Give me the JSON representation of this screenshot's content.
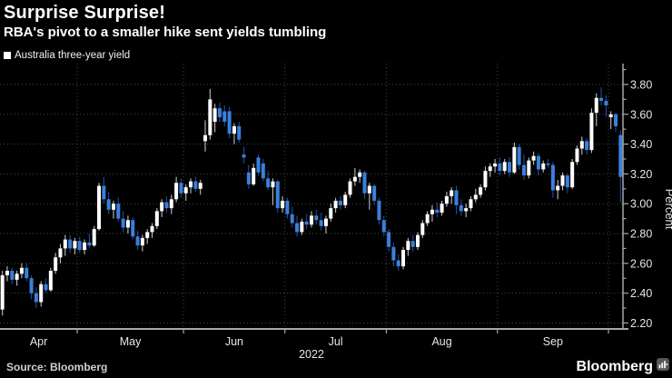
{
  "header": {
    "title": "Surprise Surprise!",
    "subtitle": "RBA's pivot to a smaller hike sent yields tumbling"
  },
  "legend": {
    "label": "Australia three-year yield",
    "swatch_color": "#ffffff"
  },
  "footer": {
    "source": "Source: Bloomberg",
    "brand": "Bloomberg"
  },
  "colors": {
    "background": "#000000",
    "up_body": "#ffffff",
    "up_wick": "#bdbdbd",
    "down_body": "#3a80dc",
    "down_wick": "#1d4f9c",
    "grid": "#474747",
    "axis": "#a8a8a8",
    "label": "#e6e6e6"
  },
  "chart_data": {
    "type": "candlestick",
    "title": "Surprise Surprise!",
    "subtitle": "RBA's pivot to a smaller hike sent yields tumbling",
    "series_name": "Australia three-year yield",
    "ylabel": "Percent",
    "year_label": "2022",
    "ymin": 2.16,
    "ymax": 3.94,
    "ytick_label_min": 2.2,
    "ytick_label_max": 3.8,
    "ytick_label_step": 0.2,
    "ytick_minor_step": 0.1,
    "grid": "dotted",
    "legend_position": "top-left",
    "months": [
      {
        "label": "Apr",
        "candles": [
          [
            2.29,
            2.55,
            2.25,
            2.52
          ],
          [
            2.52,
            2.58,
            2.48,
            2.55
          ],
          [
            2.55,
            2.57,
            2.46,
            2.49
          ],
          [
            2.49,
            2.55,
            2.45,
            2.53
          ],
          [
            2.53,
            2.6,
            2.5,
            2.57
          ],
          [
            2.57,
            2.6,
            2.48,
            2.5
          ],
          [
            2.5,
            2.52,
            2.36,
            2.4
          ],
          [
            2.4,
            2.44,
            2.3,
            2.34
          ],
          [
            2.34,
            2.48,
            2.31,
            2.46
          ],
          [
            2.46,
            2.5,
            2.4,
            2.42
          ],
          [
            2.42,
            2.57,
            2.41,
            2.55
          ],
          [
            2.55,
            2.67,
            2.53,
            2.64
          ],
          [
            2.64,
            2.73,
            2.6,
            2.7
          ],
          [
            2.7,
            2.79,
            2.65,
            2.76
          ],
          [
            2.76,
            2.79,
            2.67,
            2.7
          ],
          [
            2.7,
            2.77,
            2.66,
            2.75
          ]
        ]
      },
      {
        "label": "May",
        "candles": [
          [
            2.75,
            2.78,
            2.67,
            2.69
          ],
          [
            2.69,
            2.76,
            2.66,
            2.74
          ],
          [
            2.74,
            2.8,
            2.7,
            2.72
          ],
          [
            2.72,
            2.85,
            2.71,
            2.83
          ],
          [
            2.83,
            3.14,
            2.82,
            3.12
          ],
          [
            3.12,
            3.18,
            3.0,
            3.03
          ],
          [
            3.03,
            3.08,
            2.93,
            2.96
          ],
          [
            2.96,
            3.02,
            2.9,
            3.0
          ],
          [
            3.0,
            3.04,
            2.88,
            2.9
          ],
          [
            2.9,
            2.95,
            2.81,
            2.84
          ],
          [
            2.84,
            2.92,
            2.8,
            2.89
          ],
          [
            2.89,
            2.91,
            2.76,
            2.78
          ],
          [
            2.78,
            2.82,
            2.69,
            2.72
          ],
          [
            2.72,
            2.79,
            2.68,
            2.77
          ],
          [
            2.77,
            2.83,
            2.73,
            2.81
          ],
          [
            2.81,
            2.87,
            2.77,
            2.85
          ],
          [
            2.85,
            2.97,
            2.83,
            2.95
          ],
          [
            2.95,
            3.03,
            2.91,
            3.01
          ],
          [
            3.01,
            3.05,
            2.94,
            2.97
          ],
          [
            2.97,
            3.06,
            2.93,
            3.03
          ],
          [
            3.03,
            3.18,
            3.01,
            3.14
          ],
          [
            3.14,
            3.17,
            3.04,
            3.07
          ]
        ]
      },
      {
        "label": "Jun",
        "candles": [
          [
            3.07,
            3.13,
            3.02,
            3.11
          ],
          [
            3.11,
            3.17,
            3.07,
            3.15
          ],
          [
            3.15,
            3.18,
            3.08,
            3.1
          ],
          [
            3.1,
            3.16,
            3.06,
            3.14
          ],
          [
            3.42,
            3.56,
            3.35,
            3.46
          ],
          [
            3.46,
            3.77,
            3.43,
            3.7
          ],
          [
            3.55,
            3.67,
            3.48,
            3.64
          ],
          [
            3.64,
            3.68,
            3.55,
            3.58
          ],
          [
            3.62,
            3.66,
            3.52,
            3.55
          ],
          [
            3.62,
            3.65,
            3.44,
            3.47
          ],
          [
            3.47,
            3.54,
            3.4,
            3.52
          ],
          [
            3.52,
            3.55,
            3.41,
            3.43
          ],
          [
            3.33,
            3.38,
            3.27,
            3.31
          ],
          [
            3.21,
            3.26,
            3.1,
            3.13
          ],
          [
            3.13,
            3.27,
            3.12,
            3.24
          ],
          [
            3.31,
            3.33,
            3.19,
            3.21
          ],
          [
            3.27,
            3.3,
            3.15,
            3.17
          ],
          [
            3.17,
            3.22,
            3.09,
            3.11
          ],
          [
            3.11,
            3.17,
            2.99,
            3.15
          ],
          [
            3.15,
            3.16,
            2.94,
            2.97
          ],
          [
            2.97,
            3.05,
            2.94,
            3.02
          ]
        ]
      },
      {
        "label": "Jul",
        "candles": [
          [
            3.02,
            3.04,
            2.9,
            2.93
          ],
          [
            2.93,
            2.98,
            2.84,
            2.87
          ],
          [
            2.87,
            2.92,
            2.78,
            2.81
          ],
          [
            2.81,
            2.9,
            2.79,
            2.88
          ],
          [
            2.88,
            2.93,
            2.83,
            2.86
          ],
          [
            2.86,
            2.95,
            2.84,
            2.92
          ],
          [
            2.92,
            2.96,
            2.86,
            2.89
          ],
          [
            2.89,
            2.94,
            2.82,
            2.85
          ],
          [
            2.85,
            2.92,
            2.8,
            2.9
          ],
          [
            2.9,
            3.0,
            2.88,
            2.97
          ],
          [
            2.97,
            3.04,
            2.94,
            3.02
          ],
          [
            3.02,
            3.05,
            2.96,
            2.99
          ],
          [
            2.99,
            3.08,
            2.97,
            3.06
          ],
          [
            3.06,
            3.17,
            3.04,
            3.15
          ],
          [
            3.15,
            3.24,
            3.12,
            3.18
          ],
          [
            3.18,
            3.23,
            3.14,
            3.21
          ],
          [
            3.21,
            3.22,
            3.03,
            3.07
          ],
          [
            3.07,
            3.14,
            2.96,
            3.12
          ],
          [
            3.12,
            3.13,
            2.99,
            3.02
          ],
          [
            3.02,
            3.04,
            2.86,
            2.89
          ],
          [
            2.89,
            2.92,
            2.78,
            2.81
          ]
        ]
      },
      {
        "label": "Aug",
        "candles": [
          [
            2.81,
            2.83,
            2.68,
            2.71
          ],
          [
            2.71,
            2.74,
            2.58,
            2.62
          ],
          [
            2.62,
            2.66,
            2.55,
            2.58
          ],
          [
            2.58,
            2.71,
            2.56,
            2.69
          ],
          [
            2.69,
            2.77,
            2.65,
            2.75
          ],
          [
            2.75,
            2.79,
            2.68,
            2.71
          ],
          [
            2.71,
            2.81,
            2.69,
            2.79
          ],
          [
            2.79,
            2.89,
            2.77,
            2.87
          ],
          [
            2.87,
            2.95,
            2.85,
            2.93
          ],
          [
            2.93,
            2.99,
            2.88,
            2.96
          ],
          [
            2.96,
            3.01,
            2.91,
            2.94
          ],
          [
            2.94,
            3.02,
            2.92,
            3.0
          ],
          [
            3.0,
            3.08,
            2.98,
            3.05
          ],
          [
            3.05,
            3.11,
            3.0,
            3.09
          ],
          [
            3.09,
            3.12,
            2.93,
            2.99
          ],
          [
            2.99,
            3.03,
            2.92,
            2.95
          ],
          [
            2.95,
            3.0,
            2.91,
            2.97
          ],
          [
            2.97,
            3.05,
            2.95,
            3.03
          ],
          [
            3.03,
            3.1,
            3.01,
            3.06
          ],
          [
            3.06,
            3.13,
            3.04,
            3.11
          ],
          [
            3.11,
            3.25,
            3.09,
            3.22
          ],
          [
            3.22,
            3.27,
            3.18,
            3.25
          ],
          [
            3.25,
            3.3,
            3.21,
            3.27
          ]
        ]
      },
      {
        "label": "Sep",
        "candles": [
          [
            3.27,
            3.31,
            3.19,
            3.22
          ],
          [
            3.22,
            3.3,
            3.2,
            3.28
          ],
          [
            3.28,
            3.31,
            3.18,
            3.21
          ],
          [
            3.21,
            3.41,
            3.2,
            3.38
          ],
          [
            3.38,
            3.4,
            3.23,
            3.26
          ],
          [
            3.26,
            3.33,
            3.16,
            3.19
          ],
          [
            3.19,
            3.31,
            3.17,
            3.29
          ],
          [
            3.29,
            3.35,
            3.26,
            3.32
          ],
          [
            3.32,
            3.34,
            3.19,
            3.23
          ],
          [
            3.23,
            3.29,
            3.21,
            3.27
          ],
          [
            3.27,
            3.3,
            3.24,
            3.26
          ],
          [
            3.26,
            3.28,
            3.04,
            3.09
          ],
          [
            3.09,
            3.16,
            3.03,
            3.12
          ],
          [
            3.12,
            3.21,
            3.09,
            3.19
          ],
          [
            3.19,
            3.2,
            3.07,
            3.11
          ],
          [
            3.11,
            3.3,
            3.1,
            3.28
          ],
          [
            3.28,
            3.39,
            3.26,
            3.37
          ],
          [
            3.37,
            3.45,
            3.33,
            3.42
          ],
          [
            3.42,
            3.44,
            3.33,
            3.36
          ],
          [
            3.36,
            3.64,
            3.34,
            3.61
          ],
          [
            3.61,
            3.74,
            3.52,
            3.71
          ],
          [
            3.71,
            3.78,
            3.66,
            3.69
          ],
          [
            3.69,
            3.73,
            3.58,
            3.66
          ]
        ]
      },
      {
        "label": "",
        "candles": [
          [
            3.58,
            3.62,
            3.5,
            3.6
          ],
          [
            3.6,
            3.61,
            3.48,
            3.52
          ],
          [
            3.46,
            3.49,
            3.01,
            3.18
          ]
        ]
      }
    ]
  }
}
